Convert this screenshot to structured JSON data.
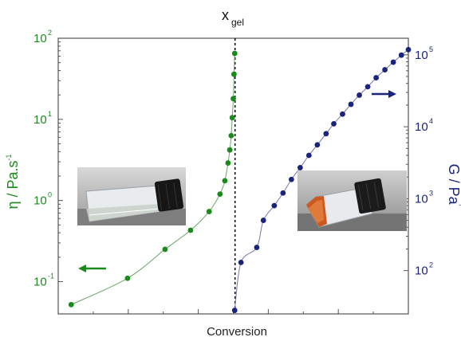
{
  "chart_data": {
    "type": "scatter",
    "title": "x",
    "title_subscript": "gel",
    "xlabel": "Conversion",
    "ylabel_left": "η / Pa.s",
    "ylabel_left_superscript": "-1",
    "ylabel_right": "G / Pa",
    "ylabel_right_superscript": "'",
    "ylim_left": [
      0.04,
      100
    ],
    "ylim_right": [
      25,
      170000
    ],
    "xlim": [
      0,
      1
    ],
    "yscale": "log",
    "grid": false,
    "gel_point_x": 0.505,
    "left_ticks": [
      {
        "value": 0.1,
        "base": "10",
        "exp": "-1"
      },
      {
        "value": 1,
        "base": "10",
        "exp": "0"
      },
      {
        "value": 10,
        "base": "10",
        "exp": "1"
      },
      {
        "value": 100,
        "base": "10",
        "exp": "2"
      }
    ],
    "right_ticks": [
      {
        "value": 100,
        "base": "10",
        "exp": "2"
      },
      {
        "value": 1000,
        "base": "10",
        "exp": "3"
      },
      {
        "value": 10000,
        "base": "10",
        "exp": "4"
      },
      {
        "value": 100000,
        "base": "10",
        "exp": "5"
      }
    ],
    "series": [
      {
        "axis": "left",
        "color": "#1a8a1a",
        "points": [
          {
            "x": 0.037,
            "y": 0.052
          },
          {
            "x": 0.198,
            "y": 0.11
          },
          {
            "x": 0.305,
            "y": 0.25
          },
          {
            "x": 0.378,
            "y": 0.43
          },
          {
            "x": 0.431,
            "y": 0.73
          },
          {
            "x": 0.462,
            "y": 1.2
          },
          {
            "x": 0.476,
            "y": 1.75
          },
          {
            "x": 0.485,
            "y": 2.9
          },
          {
            "x": 0.49,
            "y": 4.2
          },
          {
            "x": 0.494,
            "y": 6.3
          },
          {
            "x": 0.497,
            "y": 10.5
          },
          {
            "x": 0.5,
            "y": 18
          },
          {
            "x": 0.502,
            "y": 36
          },
          {
            "x": 0.504,
            "y": 65
          }
        ]
      },
      {
        "axis": "right",
        "color": "#1a237e",
        "points": [
          {
            "x": 0.504,
            "y": 28
          },
          {
            "x": 0.522,
            "y": 130
          },
          {
            "x": 0.567,
            "y": 210
          },
          {
            "x": 0.586,
            "y": 500
          },
          {
            "x": 0.617,
            "y": 800
          },
          {
            "x": 0.642,
            "y": 1200
          },
          {
            "x": 0.666,
            "y": 1850
          },
          {
            "x": 0.691,
            "y": 2700
          },
          {
            "x": 0.716,
            "y": 4000
          },
          {
            "x": 0.74,
            "y": 5600
          },
          {
            "x": 0.765,
            "y": 8000
          },
          {
            "x": 0.787,
            "y": 11000
          },
          {
            "x": 0.812,
            "y": 15000
          },
          {
            "x": 0.836,
            "y": 20500
          },
          {
            "x": 0.86,
            "y": 27500
          },
          {
            "x": 0.884,
            "y": 36000
          },
          {
            "x": 0.908,
            "y": 48000
          },
          {
            "x": 0.933,
            "y": 62000
          },
          {
            "x": 0.957,
            "y": 79000
          },
          {
            "x": 0.98,
            "y": 99000
          },
          {
            "x": 1.0,
            "y": 118000
          }
        ]
      }
    ]
  }
}
